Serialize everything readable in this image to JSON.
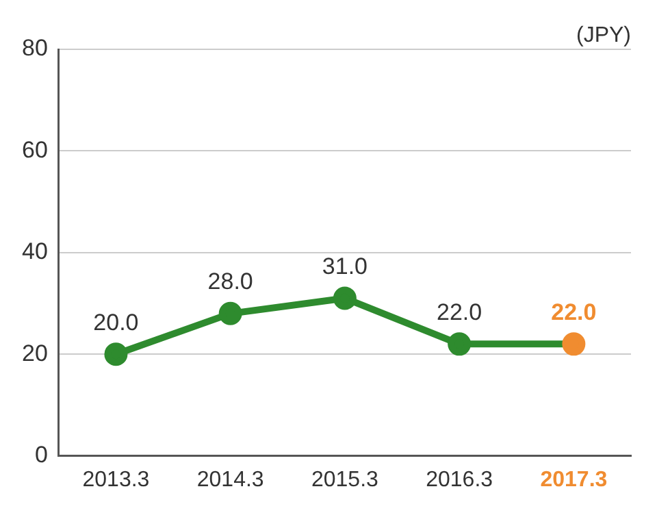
{
  "chart_data": {
    "type": "line",
    "ylabel": "(JPY)",
    "categories": [
      "2013.3",
      "2014.3",
      "2015.3",
      "2016.3",
      "2017.3"
    ],
    "series": [
      {
        "color": "#2e8b2e",
        "colors": [
          "#2e8b2e",
          "#2e8b2e",
          "#2e8b2e",
          "#2e8b2e",
          "#f08c30"
        ],
        "values": [
          20,
          28,
          31,
          22,
          22
        ],
        "value_labels": [
          "20.0",
          "28.0",
          "31.0",
          "22.0",
          "22.0"
        ]
      }
    ],
    "ylim": [
      0,
      80
    ],
    "yticks": [
      0,
      20,
      40,
      60,
      80
    ],
    "grid": "y",
    "legend": false,
    "marker": "circle",
    "line_style": "solid"
  }
}
